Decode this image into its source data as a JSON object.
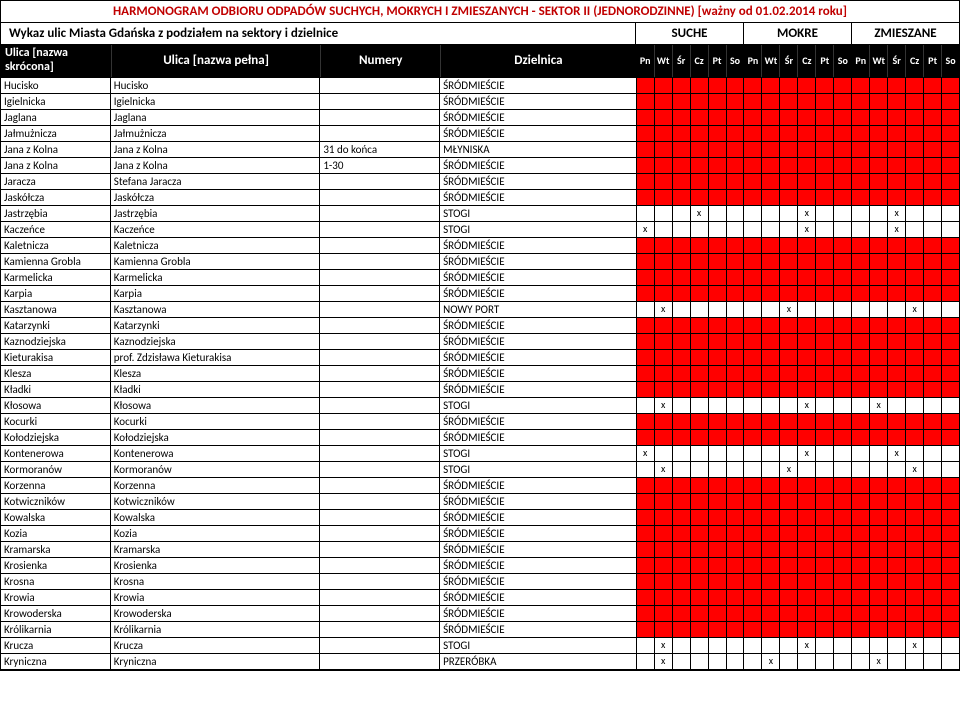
{
  "title": "HARMONOGRAM ODBIORU ODPADÓW SUCHYCH, MOKRYCH I ZMIESZANYCH - SEKTOR II (JEDNORODZINNE) [ważny od 01.02.2014 roku]",
  "subtitle": "Wykaz ulic Miasta Gdańska z podziałem na sektory i dzielnice",
  "categories": [
    "SUCHE",
    "MOKRE",
    "ZMIESZANE"
  ],
  "headers": {
    "short": "Ulica [nazwa skrócona]",
    "full": "Ulica [nazwa pełna]",
    "numbers": "Numery",
    "district": "Dzielnica",
    "days": [
      "Pn",
      "Wt",
      "Śr",
      "Cz",
      "Pt",
      "So"
    ]
  },
  "colors": {
    "title_color": "#c00000",
    "red": "#ff0000",
    "black": "#000000"
  },
  "rows": [
    {
      "short": "Hucisko",
      "full": "Hucisko",
      "num": "",
      "dist": "ŚRÓDMIEŚCIE",
      "type": "red"
    },
    {
      "short": "Igielnicka",
      "full": "Igielnicka",
      "num": "",
      "dist": "ŚRÓDMIEŚCIE",
      "type": "red"
    },
    {
      "short": "Jaglana",
      "full": "Jaglana",
      "num": "",
      "dist": "ŚRÓDMIEŚCIE",
      "type": "red"
    },
    {
      "short": "Jałmużnicza",
      "full": "Jałmużnicza",
      "num": "",
      "dist": "ŚRÓDMIEŚCIE",
      "type": "red"
    },
    {
      "short": "Jana z Kolna",
      "full": "Jana z Kolna",
      "num": "31 do końca",
      "dist": "MŁYNISKA",
      "type": "red"
    },
    {
      "short": "Jana z Kolna",
      "full": "Jana z Kolna",
      "num": "1-30",
      "dist": "ŚRÓDMIEŚCIE",
      "type": "red"
    },
    {
      "short": "Jaracza",
      "full": "Stefana Jaracza",
      "num": "",
      "dist": "ŚRÓDMIEŚCIE",
      "type": "red"
    },
    {
      "short": "Jaskółcza",
      "full": "Jaskółcza",
      "num": "",
      "dist": "ŚRÓDMIEŚCIE",
      "type": "red"
    },
    {
      "short": "Jastrzębia",
      "full": "Jastrzębia",
      "num": "",
      "dist": "STOGI",
      "type": "x",
      "marks": [
        [
          3
        ],
        [
          3
        ],
        [
          2
        ]
      ]
    },
    {
      "short": "Kaczeńce",
      "full": "Kaczeńce",
      "num": "",
      "dist": "STOGI",
      "type": "x",
      "marks": [
        [
          0
        ],
        [
          3
        ],
        [
          2
        ]
      ]
    },
    {
      "short": "Kaletnicza",
      "full": "Kaletnicza",
      "num": "",
      "dist": "ŚRÓDMIEŚCIE",
      "type": "red"
    },
    {
      "short": "Kamienna Grobla",
      "full": "Kamienna Grobla",
      "num": "",
      "dist": "ŚRÓDMIEŚCIE",
      "type": "red"
    },
    {
      "short": "Karmelicka",
      "full": "Karmelicka",
      "num": "",
      "dist": "ŚRÓDMIEŚCIE",
      "type": "red"
    },
    {
      "short": "Karpia",
      "full": "Karpia",
      "num": "",
      "dist": "ŚRÓDMIEŚCIE",
      "type": "red"
    },
    {
      "short": "Kasztanowa",
      "full": "Kasztanowa",
      "num": "",
      "dist": "NOWY PORT",
      "type": "x",
      "marks": [
        [
          1
        ],
        [
          2
        ],
        [
          3
        ]
      ]
    },
    {
      "short": "Katarzynki",
      "full": "Katarzynki",
      "num": "",
      "dist": "ŚRÓDMIEŚCIE",
      "type": "red"
    },
    {
      "short": "Kaznodziejska",
      "full": "Kaznodziejska",
      "num": "",
      "dist": "ŚRÓDMIEŚCIE",
      "type": "red"
    },
    {
      "short": "Kieturakisa",
      "full": "prof. Zdzisława Kieturakisa",
      "num": "",
      "dist": "ŚRÓDMIEŚCIE",
      "type": "red"
    },
    {
      "short": "Klesza",
      "full": "Klesza",
      "num": "",
      "dist": "ŚRÓDMIEŚCIE",
      "type": "red"
    },
    {
      "short": "Kładki",
      "full": "Kładki",
      "num": "",
      "dist": "ŚRÓDMIEŚCIE",
      "type": "red"
    },
    {
      "short": "Kłosowa",
      "full": "Kłosowa",
      "num": "",
      "dist": "STOGI",
      "type": "x",
      "marks": [
        [
          1
        ],
        [
          3
        ],
        [
          1
        ]
      ]
    },
    {
      "short": "Kocurki",
      "full": "Kocurki",
      "num": "",
      "dist": "ŚRÓDMIEŚCIE",
      "type": "red"
    },
    {
      "short": "Kołodziejska",
      "full": "Kołodziejska",
      "num": "",
      "dist": "ŚRÓDMIEŚCIE",
      "type": "red"
    },
    {
      "short": "Kontenerowa",
      "full": "Kontenerowa",
      "num": "",
      "dist": "STOGI",
      "type": "x",
      "marks": [
        [
          0
        ],
        [
          3
        ],
        [
          2
        ]
      ]
    },
    {
      "short": "Kormoranów",
      "full": "Kormoranów",
      "num": "",
      "dist": "STOGI",
      "type": "x",
      "marks": [
        [
          1
        ],
        [
          2
        ],
        [
          3
        ]
      ]
    },
    {
      "short": "Korzenna",
      "full": "Korzenna",
      "num": "",
      "dist": "ŚRÓDMIEŚCIE",
      "type": "red"
    },
    {
      "short": "Kotwiczników",
      "full": "Kotwiczników",
      "num": "",
      "dist": "ŚRÓDMIEŚCIE",
      "type": "red"
    },
    {
      "short": "Kowalska",
      "full": "Kowalska",
      "num": "",
      "dist": "ŚRÓDMIEŚCIE",
      "type": "red"
    },
    {
      "short": "Kozia",
      "full": "Kozia",
      "num": "",
      "dist": "ŚRÓDMIEŚCIE",
      "type": "red"
    },
    {
      "short": "Kramarska",
      "full": "Kramarska",
      "num": "",
      "dist": "ŚRÓDMIEŚCIE",
      "type": "red"
    },
    {
      "short": "Krosienka",
      "full": "Krosienka",
      "num": "",
      "dist": "ŚRÓDMIEŚCIE",
      "type": "red"
    },
    {
      "short": "Krosna",
      "full": "Krosna",
      "num": "",
      "dist": "ŚRÓDMIEŚCIE",
      "type": "red"
    },
    {
      "short": "Krowia",
      "full": "Krowia",
      "num": "",
      "dist": "ŚRÓDMIEŚCIE",
      "type": "red"
    },
    {
      "short": "Krowoderska",
      "full": "Krowoderska",
      "num": "",
      "dist": "ŚRÓDMIEŚCIE",
      "type": "red"
    },
    {
      "short": "Królikarnia",
      "full": "Królikarnia",
      "num": "",
      "dist": "ŚRÓDMIEŚCIE",
      "type": "red"
    },
    {
      "short": "Krucza",
      "full": "Krucza",
      "num": "",
      "dist": "STOGI",
      "type": "x",
      "marks": [
        [
          1
        ],
        [
          3
        ],
        [
          3
        ]
      ]
    },
    {
      "short": "Kryniczna",
      "full": "Kryniczna",
      "num": "",
      "dist": "PRZERÓBKA",
      "type": "x",
      "marks": [
        [
          1
        ],
        [
          1
        ],
        [
          1
        ]
      ]
    }
  ]
}
